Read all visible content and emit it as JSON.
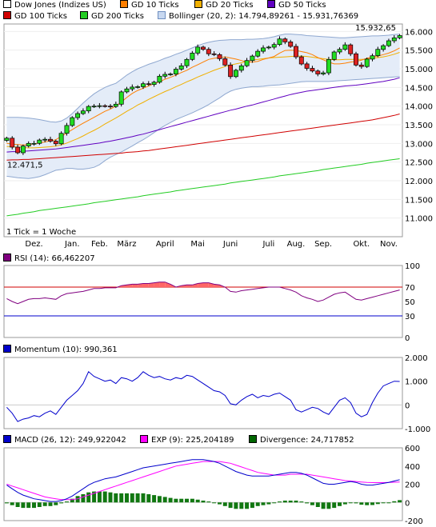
{
  "legends": {
    "price": [
      {
        "label": "Dow Jones (Indizes US)",
        "color": "#ffffff"
      },
      {
        "label": "GD 10 Ticks",
        "color": "#ff7f00"
      },
      {
        "label": "GD 20 Ticks",
        "color": "#f0b000"
      },
      {
        "label": "GD 50 Ticks",
        "color": "#6000c0"
      },
      {
        "label": "GD 100 Ticks",
        "color": "#d00000"
      },
      {
        "label": "GD 200 Ticks",
        "color": "#22cc22"
      },
      {
        "label": "Bollinger (20, 2): 14.794,89261 - 15.931,76369",
        "color": "band"
      }
    ],
    "rsi": [
      {
        "label": "RSI (14): 66,462207",
        "color": "#800080"
      }
    ],
    "momentum": [
      {
        "label": "Momentum (10): 990,361",
        "color": "#0000cc"
      }
    ],
    "macd": [
      {
        "label": "MACD (26, 12): 249,922042",
        "color": "#0000cc"
      },
      {
        "label": "EXP (9): 225,204189",
        "color": "#ff00ff"
      },
      {
        "label": "Divergence: 24,717852",
        "color": "#006600"
      }
    ]
  },
  "annotations": {
    "max_label": "15.932,65",
    "min_label": "12.471,5",
    "tick_note": "1 Tick = 1 Woche"
  },
  "chart_data": [
    {
      "type": "candlestick",
      "ylim": [
        10500,
        16200
      ],
      "y_ticks": [
        {
          "v": 11000,
          "label": "11.000"
        },
        {
          "v": 11500,
          "label": "11.500"
        },
        {
          "v": 12000,
          "label": "12.000"
        },
        {
          "v": 12500,
          "label": "12.500"
        },
        {
          "v": 13000,
          "label": "13.000"
        },
        {
          "v": 13500,
          "label": "13.500"
        },
        {
          "v": 14000,
          "label": "14.000"
        },
        {
          "v": 14500,
          "label": "14.500"
        },
        {
          "v": 15000,
          "label": "15.000"
        },
        {
          "v": 15500,
          "label": "15.500"
        },
        {
          "v": 16000,
          "label": "16.000"
        }
      ],
      "x_labels": [
        {
          "i": 5,
          "label": "Dez."
        },
        {
          "i": 12,
          "label": "Jan."
        },
        {
          "i": 17,
          "label": "Feb."
        },
        {
          "i": 22,
          "label": "März"
        },
        {
          "i": 29,
          "label": "April"
        },
        {
          "i": 35,
          "label": "Mai"
        },
        {
          "i": 41,
          "label": "Juni"
        },
        {
          "i": 48,
          "label": "Juli"
        },
        {
          "i": 53,
          "label": "Aug."
        },
        {
          "i": 58,
          "label": "Sep."
        },
        {
          "i": 65,
          "label": "Okt."
        },
        {
          "i": 70,
          "label": "Nov."
        }
      ],
      "close": [
        13140,
        12900,
        12750,
        12930,
        13000,
        13000,
        13090,
        13110,
        13060,
        12990,
        13270,
        13480,
        13690,
        13800,
        13870,
        13990,
        14000,
        14010,
        14000,
        13990,
        14050,
        14380,
        14460,
        14510,
        14520,
        14600,
        14580,
        14640,
        14800,
        14850,
        14860,
        14990,
        15080,
        15250,
        15420,
        15580,
        15520,
        15400,
        15380,
        15270,
        15100,
        14790,
        14960,
        15080,
        15220,
        15340,
        15470,
        15560,
        15580,
        15650,
        15800,
        15720,
        15600,
        15320,
        15130,
        15010,
        14940,
        14860,
        14890,
        15250,
        15450,
        15520,
        15640,
        15400,
        15100,
        15060,
        15260,
        15350,
        15520,
        15620,
        15750,
        15830,
        15890
      ],
      "ma10": [
        13000,
        12980,
        12970,
        12960,
        12970,
        12990,
        13010,
        13040,
        13070,
        13100,
        13190,
        13280,
        13370,
        13460,
        13540,
        13620,
        13700,
        13780,
        13860,
        13920,
        14000,
        14110,
        14230,
        14340,
        14420,
        14480,
        14540,
        14600,
        14650,
        14720,
        14770,
        14830,
        14900,
        14960,
        15040,
        15110,
        15180,
        15250,
        15280,
        15300,
        15320,
        15290,
        15260,
        15220,
        15180,
        15180,
        15200,
        15250,
        15290,
        15330,
        15420,
        15490,
        15500,
        15490,
        15460,
        15430,
        15380,
        15300,
        15240,
        15180,
        15130,
        15130,
        15150,
        15180,
        15200,
        15230,
        15280,
        15320,
        15340,
        15380,
        15420,
        15480,
        15560
      ],
      "ma20": [
        12920,
        12910,
        12900,
        12890,
        12880,
        12880,
        12890,
        12900,
        12910,
        12930,
        12960,
        13010,
        13070,
        13130,
        13200,
        13280,
        13350,
        13430,
        13520,
        13600,
        13680,
        13770,
        13860,
        13940,
        14030,
        14100,
        14180,
        14250,
        14320,
        14390,
        14450,
        14520,
        14580,
        14650,
        14710,
        14780,
        14840,
        14900,
        14960,
        15010,
        15060,
        15100,
        15130,
        15160,
        15200,
        15230,
        15250,
        15270,
        15290,
        15300,
        15310,
        15320,
        15330,
        15340,
        15340,
        15330,
        15310,
        15290,
        15270,
        15250,
        15240,
        15240,
        15250,
        15250,
        15250,
        15250,
        15260,
        15280,
        15300,
        15320,
        15350,
        15390,
        15440
      ],
      "ma50": [
        12770,
        12780,
        12780,
        12790,
        12800,
        12810,
        12820,
        12830,
        12840,
        12850,
        12870,
        12890,
        12910,
        12930,
        12950,
        12970,
        12990,
        13010,
        13040,
        13060,
        13090,
        13120,
        13150,
        13180,
        13220,
        13250,
        13290,
        13330,
        13370,
        13410,
        13450,
        13490,
        13530,
        13570,
        13610,
        13650,
        13690,
        13730,
        13770,
        13810,
        13850,
        13890,
        13920,
        13960,
        14000,
        14030,
        14070,
        14110,
        14150,
        14190,
        14230,
        14270,
        14310,
        14340,
        14370,
        14400,
        14420,
        14440,
        14460,
        14480,
        14500,
        14520,
        14540,
        14550,
        14560,
        14580,
        14600,
        14620,
        14640,
        14660,
        14690,
        14720,
        14760
      ],
      "ma100": [
        12550,
        12560,
        12560,
        12570,
        12570,
        12580,
        12590,
        12600,
        12610,
        12620,
        12630,
        12640,
        12650,
        12660,
        12670,
        12680,
        12690,
        12700,
        12710,
        12720,
        12730,
        12740,
        12760,
        12770,
        12780,
        12800,
        12810,
        12830,
        12850,
        12870,
        12890,
        12910,
        12930,
        12950,
        12970,
        12990,
        13010,
        13030,
        13050,
        13070,
        13090,
        13110,
        13130,
        13150,
        13170,
        13190,
        13210,
        13230,
        13250,
        13270,
        13290,
        13310,
        13330,
        13350,
        13370,
        13390,
        13410,
        13430,
        13450,
        13470,
        13490,
        13510,
        13530,
        13550,
        13570,
        13590,
        13610,
        13630,
        13660,
        13690,
        13720,
        13750,
        13790
      ],
      "ma200": [
        11060,
        11080,
        11100,
        11130,
        11150,
        11170,
        11200,
        11220,
        11240,
        11260,
        11280,
        11300,
        11320,
        11340,
        11360,
        11380,
        11410,
        11430,
        11450,
        11470,
        11490,
        11510,
        11530,
        11550,
        11570,
        11600,
        11620,
        11640,
        11660,
        11680,
        11700,
        11730,
        11750,
        11770,
        11790,
        11810,
        11830,
        11850,
        11870,
        11890,
        11910,
        11940,
        11960,
        11980,
        12000,
        12020,
        12040,
        12060,
        12080,
        12100,
        12130,
        12150,
        12170,
        12190,
        12210,
        12230,
        12250,
        12270,
        12300,
        12320,
        12340,
        12360,
        12380,
        12400,
        12420,
        12440,
        12470,
        12490,
        12510,
        12530,
        12550,
        12570,
        12590
      ],
      "boll_upper": [
        13700,
        13700,
        13700,
        13690,
        13680,
        13660,
        13640,
        13610,
        13580,
        13570,
        13600,
        13680,
        13800,
        13940,
        14080,
        14210,
        14330,
        14420,
        14500,
        14560,
        14610,
        14720,
        14830,
        14920,
        15000,
        15060,
        15120,
        15170,
        15220,
        15280,
        15330,
        15390,
        15440,
        15500,
        15560,
        15620,
        15670,
        15710,
        15740,
        15760,
        15770,
        15780,
        15780,
        15780,
        15790,
        15790,
        15800,
        15810,
        15830,
        15860,
        15900,
        15930,
        15930,
        15920,
        15910,
        15890,
        15880,
        15870,
        15860,
        15850,
        15840,
        15830,
        15830,
        15840,
        15850,
        15860,
        15870,
        15880,
        15880,
        15890,
        15900,
        15920,
        15930
      ],
      "boll_lower": [
        12120,
        12100,
        12080,
        12070,
        12060,
        12080,
        12110,
        12160,
        12220,
        12280,
        12300,
        12330,
        12330,
        12310,
        12310,
        12330,
        12360,
        12430,
        12540,
        12630,
        12700,
        12770,
        12850,
        12930,
        13020,
        13100,
        13190,
        13290,
        13390,
        13480,
        13560,
        13640,
        13700,
        13760,
        13820,
        13890,
        13960,
        14040,
        14130,
        14220,
        14320,
        14400,
        14450,
        14480,
        14500,
        14520,
        14520,
        14530,
        14550,
        14560,
        14570,
        14590,
        14610,
        14630,
        14650,
        14660,
        14660,
        14660,
        14660,
        14660,
        14670,
        14680,
        14690,
        14700,
        14710,
        14720,
        14730,
        14740,
        14750,
        14760,
        14770,
        14780,
        14790
      ]
    },
    {
      "type": "line",
      "ylim": [
        0,
        100
      ],
      "y_ticks": [
        {
          "v": 0,
          "label": "0"
        },
        {
          "v": 30,
          "label": "30"
        },
        {
          "v": 50,
          "label": "50"
        },
        {
          "v": 70,
          "label": "70"
        },
        {
          "v": 100,
          "label": "100"
        }
      ],
      "overbought": 70,
      "oversold": 30,
      "values": [
        54,
        50,
        47,
        50,
        53,
        54,
        54,
        55,
        54,
        53,
        58,
        61,
        62,
        63,
        64,
        66,
        68,
        68,
        69,
        69,
        69,
        72,
        73,
        74,
        74,
        75,
        75,
        76,
        77,
        77,
        74,
        70,
        72,
        73,
        73,
        75,
        76,
        76,
        74,
        73,
        70,
        64,
        63,
        65,
        66,
        67,
        68,
        69,
        70,
        70,
        70,
        68,
        66,
        63,
        58,
        55,
        53,
        50,
        52,
        56,
        60,
        62,
        63,
        58,
        53,
        52,
        54,
        56,
        58,
        60,
        62,
        64,
        66
      ]
    },
    {
      "type": "line",
      "ylim": [
        -1000,
        2000
      ],
      "y_ticks": [
        {
          "v": -1000,
          "label": "-1.000"
        },
        {
          "v": 0,
          "label": "0"
        },
        {
          "v": 1000,
          "label": "1.000"
        },
        {
          "v": 2000,
          "label": "2.000"
        }
      ],
      "values": [
        -100,
        -350,
        -700,
        -600,
        -550,
        -450,
        -500,
        -350,
        -250,
        -400,
        -100,
        200,
        400,
        600,
        900,
        1400,
        1200,
        1100,
        1000,
        1050,
        900,
        1150,
        1100,
        1000,
        1150,
        1400,
        1250,
        1150,
        1200,
        1100,
        1050,
        1150,
        1100,
        1250,
        1200,
        1050,
        900,
        750,
        600,
        550,
        400,
        50,
        0,
        200,
        350,
        450,
        300,
        400,
        350,
        450,
        500,
        350,
        200,
        -200,
        -300,
        -200,
        -100,
        -150,
        -300,
        -400,
        -100,
        200,
        300,
        100,
        -350,
        -500,
        -400,
        100,
        500,
        800,
        900,
        1000,
        990
      ]
    },
    {
      "type": "bar+line",
      "ylim": [
        -200,
        600
      ],
      "y_ticks": [
        {
          "v": -200,
          "label": "-200"
        },
        {
          "v": 0,
          "label": "0"
        },
        {
          "v": 200,
          "label": "200"
        },
        {
          "v": 400,
          "label": "400"
        },
        {
          "v": 600,
          "label": "600"
        }
      ],
      "macd": [
        190,
        150,
        110,
        80,
        60,
        40,
        30,
        20,
        10,
        10,
        20,
        40,
        70,
        110,
        150,
        190,
        220,
        240,
        260,
        270,
        280,
        300,
        320,
        340,
        360,
        380,
        390,
        400,
        410,
        420,
        430,
        440,
        450,
        460,
        470,
        470,
        470,
        460,
        450,
        430,
        400,
        370,
        340,
        320,
        300,
        290,
        290,
        290,
        290,
        300,
        310,
        320,
        330,
        330,
        320,
        300,
        270,
        240,
        210,
        200,
        200,
        210,
        220,
        230,
        220,
        200,
        190,
        190,
        200,
        210,
        220,
        235,
        250
      ],
      "exp": [
        200,
        180,
        160,
        140,
        120,
        100,
        80,
        60,
        50,
        40,
        30,
        30,
        30,
        40,
        60,
        80,
        100,
        120,
        140,
        160,
        180,
        200,
        220,
        240,
        260,
        280,
        300,
        320,
        340,
        360,
        380,
        400,
        410,
        420,
        430,
        440,
        450,
        450,
        450,
        450,
        440,
        430,
        410,
        390,
        370,
        350,
        330,
        320,
        310,
        300,
        300,
        300,
        310,
        310,
        310,
        310,
        300,
        290,
        280,
        270,
        260,
        250,
        240,
        235,
        230,
        225,
        220,
        218,
        218,
        218,
        220,
        222,
        225
      ],
      "divergence": [
        -10,
        -30,
        -50,
        -60,
        -60,
        -60,
        -50,
        -40,
        -40,
        -30,
        -10,
        10,
        40,
        70,
        90,
        110,
        120,
        120,
        120,
        110,
        100,
        100,
        100,
        100,
        100,
        100,
        90,
        80,
        70,
        60,
        50,
        40,
        40,
        40,
        40,
        30,
        20,
        10,
        0,
        -20,
        -40,
        -60,
        -70,
        -70,
        -70,
        -60,
        -40,
        -30,
        -20,
        0,
        10,
        20,
        20,
        20,
        10,
        -10,
        -30,
        -50,
        -70,
        -70,
        -60,
        -40,
        -20,
        -5,
        -10,
        -25,
        -30,
        -28,
        -18,
        -8,
        0,
        13,
        25
      ]
    }
  ]
}
